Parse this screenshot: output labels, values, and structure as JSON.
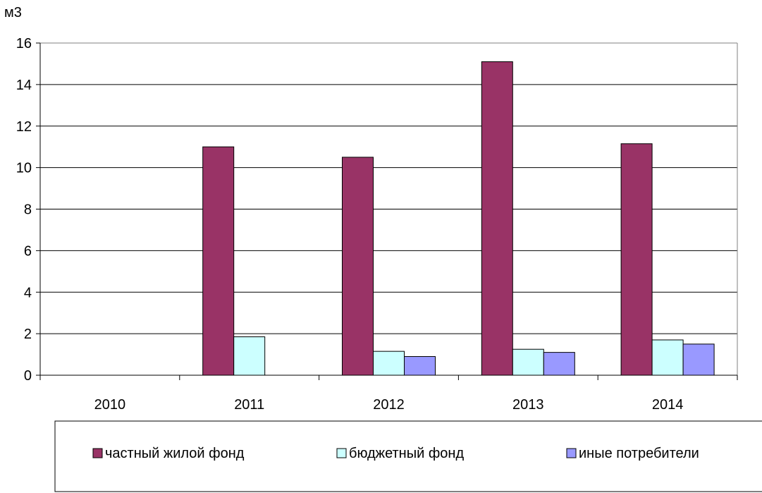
{
  "chart_data": {
    "type": "bar",
    "ylabel": "м3",
    "xlabel": "",
    "ylim": [
      0,
      16
    ],
    "yticks": [
      0,
      2,
      4,
      6,
      8,
      10,
      12,
      14,
      16
    ],
    "grid": true,
    "legend_position": "bottom",
    "categories": [
      "2010",
      "2011",
      "2012",
      "2013",
      "2014"
    ],
    "series": [
      {
        "name": "частный жилой фонд",
        "color": "#993366",
        "values": [
          null,
          11.0,
          10.5,
          15.1,
          11.15
        ]
      },
      {
        "name": "бюджетный фонд",
        "color": "#ccffff",
        "values": [
          null,
          1.85,
          1.15,
          1.25,
          1.7
        ]
      },
      {
        "name": "иные потребители",
        "color": "#9999ff",
        "values": [
          null,
          null,
          0.9,
          1.1,
          1.5
        ]
      }
    ]
  }
}
